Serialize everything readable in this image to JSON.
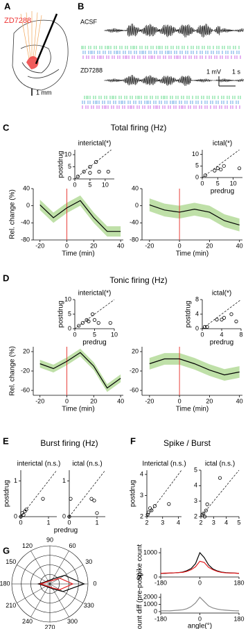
{
  "figure": {
    "A": {
      "panel": "A",
      "drug": "ZD7288",
      "scale": "1 mm"
    },
    "B": {
      "panel": "B",
      "trace1": "ACSF",
      "trace2": "ZD7288",
      "scale_v": "1 mV",
      "scale_t": "1 s"
    }
  },
  "chart_data": [
    {
      "type": "line",
      "panel": "C",
      "group_title": "Total firing (Hz)",
      "ylabel": "Rel. change (%)",
      "xlabel": "Time (min)",
      "x": [
        -20,
        -10,
        0,
        10,
        20,
        30,
        40
      ],
      "values": [
        2,
        -28,
        -5,
        12,
        -28,
        -60,
        -60
      ],
      "band_upper": [
        14,
        -16,
        7,
        24,
        -16,
        -48,
        -48
      ],
      "band_lower": [
        -10,
        -40,
        -17,
        0,
        -40,
        -72,
        -72
      ],
      "color": "#000000",
      "band_color": "#bfe0a8",
      "vline": 0,
      "vline_color": "#e8403a",
      "xlim": [
        -25,
        42
      ],
      "ylim": [
        -80,
        40
      ],
      "xticks": [
        -20,
        0,
        20,
        40
      ],
      "yticks": [
        -80,
        -40,
        0,
        40
      ]
    },
    {
      "type": "scatter",
      "title": "interictal(*)",
      "ylabel": "postdrug",
      "x": [
        1,
        3,
        5,
        5,
        7,
        8,
        11
      ],
      "values": [
        1,
        3,
        5,
        2.5,
        7,
        3,
        3
      ],
      "xlim": [
        0,
        13
      ],
      "ylim": [
        0,
        12
      ],
      "xticks": [
        0,
        5,
        10
      ],
      "yticks": [
        0,
        5,
        10
      ],
      "diagonal": true
    },
    {
      "type": "line",
      "xlabel": "Time (min)",
      "x": [
        -20,
        -10,
        0,
        10,
        20,
        30,
        40
      ],
      "values": [
        2,
        -10,
        -15,
        -8,
        -15,
        -35,
        -45
      ],
      "band_upper": [
        17,
        5,
        0,
        7,
        0,
        -20,
        -30
      ],
      "band_lower": [
        -13,
        -25,
        -30,
        -23,
        -30,
        -50,
        -60
      ],
      "color": "#000000",
      "band_color": "#bfe0a8",
      "vline": 0,
      "vline_color": "#e8403a",
      "xlim": [
        -25,
        42
      ],
      "ylim": [
        -80,
        40
      ],
      "xticks": [
        -20,
        0,
        20,
        40
      ],
      "yticks": [
        -80,
        -40,
        0,
        40
      ]
    },
    {
      "type": "scatter",
      "title": "ictal(*)",
      "xlabel": "predrug",
      "x": [
        1,
        4,
        5,
        6,
        7,
        12
      ],
      "values": [
        1,
        3,
        4,
        3.5,
        5,
        4
      ],
      "xlim": [
        0,
        13
      ],
      "ylim": [
        0,
        12
      ],
      "xticks": [
        0,
        5,
        10
      ],
      "yticks": [
        0,
        5,
        10
      ],
      "diagonal": true
    },
    {
      "type": "line",
      "panel": "D",
      "group_title": "Tonic firing (Hz)",
      "ylabel": "Rel. change (%)",
      "xlabel": "Time (min)",
      "x": [
        -20,
        -10,
        0,
        10,
        20,
        30,
        40
      ],
      "values": [
        -5,
        -15,
        0,
        18,
        -10,
        -55,
        -35
      ],
      "band_upper": [
        3,
        -7,
        8,
        26,
        -2,
        -47,
        -27
      ],
      "band_lower": [
        -13,
        -23,
        -8,
        10,
        -18,
        -63,
        -43
      ],
      "color": "#000000",
      "band_color": "#bfe0a8",
      "vline": 0,
      "vline_color": "#e8403a",
      "xlim": [
        -25,
        42
      ],
      "ylim": [
        -70,
        30
      ],
      "xticks": [
        -20,
        0,
        20,
        40
      ],
      "yticks": [
        -60,
        -20,
        20
      ]
    },
    {
      "type": "scatter",
      "title": "interictal(*)",
      "ylabel": "postdrug",
      "xlabel": "predrug",
      "x": [
        1,
        2,
        3,
        3.5,
        4.5,
        5,
        6,
        9
      ],
      "values": [
        1,
        2,
        3,
        2.5,
        5,
        3,
        2,
        2
      ],
      "xlim": [
        0,
        10
      ],
      "ylim": [
        0,
        10
      ],
      "xticks": [
        0,
        5,
        10
      ],
      "yticks": [
        0,
        5,
        10
      ],
      "diagonal": true
    },
    {
      "type": "line",
      "xlabel": "Time (min)",
      "x": [
        -20,
        -10,
        0,
        10,
        20,
        30,
        40
      ],
      "values": [
        -5,
        5,
        5,
        -5,
        -18,
        -28,
        -22
      ],
      "band_upper": [
        7,
        17,
        17,
        7,
        -6,
        -16,
        -10
      ],
      "band_lower": [
        -17,
        -7,
        -7,
        -17,
        -30,
        -40,
        -34
      ],
      "color": "#000000",
      "band_color": "#bfe0a8",
      "vline": 0,
      "vline_color": "#e8403a",
      "xlim": [
        -25,
        42
      ],
      "ylim": [
        -70,
        30
      ],
      "xticks": [
        -20,
        0,
        20,
        40
      ],
      "yticks": [
        -60,
        -20,
        20
      ]
    },
    {
      "type": "scatter",
      "title": "ictal(*)",
      "ylabel": "postdrug",
      "xlabel": "predrug",
      "x": [
        0.5,
        1,
        3,
        4,
        4.5,
        6,
        7
      ],
      "values": [
        0.5,
        0.5,
        2.5,
        2.5,
        3,
        4,
        2
      ],
      "xlim": [
        0,
        8
      ],
      "ylim": [
        0,
        8
      ],
      "xticks": [
        0,
        4,
        8
      ],
      "yticks": [
        0,
        4,
        8
      ],
      "diagonal": true
    },
    {
      "type": "scatter",
      "panel": "E",
      "group_title": "Burst firing (Hz)",
      "title": "interictal (n.s.)",
      "ylabel": "postdrug",
      "xlabel": "predrug",
      "x": [
        0,
        0.05,
        0.1,
        0.15,
        0.2,
        0.8
      ],
      "values": [
        0,
        0.1,
        0.05,
        0.15,
        0.2,
        0.5
      ],
      "xlim": [
        0,
        1.3
      ],
      "ylim": [
        0,
        1.3
      ],
      "xticks": [
        0,
        1
      ],
      "yticks": [
        0,
        1
      ],
      "diagonal": true
    },
    {
      "type": "scatter",
      "title": "ictal (n.s.)",
      "x": [
        0,
        0.05,
        0.8,
        1,
        0.9
      ],
      "values": [
        0,
        0.5,
        0.5,
        0.1,
        0.45
      ],
      "xlim": [
        0,
        1.3
      ],
      "ylim": [
        0,
        1.3
      ],
      "xticks": [
        0,
        1
      ],
      "yticks": [
        0,
        1
      ],
      "diagonal": true
    },
    {
      "type": "scatter",
      "panel": "F",
      "group_title": "Spike / Burst",
      "title": "Interictal (n.s.)",
      "ylabel": "postdrug",
      "x": [
        2.05,
        2.1,
        2.2,
        2.3,
        2.5,
        3.4
      ],
      "values": [
        2.1,
        2.2,
        2.4,
        2.3,
        2.5,
        2.6
      ],
      "xlim": [
        2,
        4.2
      ],
      "ylim": [
        2,
        4.2
      ],
      "xticks": [
        2,
        3,
        4
      ],
      "yticks": [
        2,
        3,
        4
      ],
      "diagonal": true
    },
    {
      "type": "scatter",
      "title": "ictal (n.s.)",
      "x": [
        2.1,
        2.2,
        2.3,
        2.4,
        2.5,
        3.5
      ],
      "values": [
        2.1,
        2.2,
        2.0,
        2.4,
        2.8,
        4.5
      ],
      "xlim": [
        2,
        5
      ],
      "ylim": [
        2,
        5
      ],
      "xticks": [
        2,
        3,
        4,
        5
      ],
      "yticks": [
        2,
        3,
        4,
        5
      ],
      "diagonal": true
    },
    {
      "type": "polar",
      "panel": "G",
      "theta": [
        0,
        30,
        60,
        90,
        120,
        150,
        180,
        210,
        240,
        270,
        300,
        330
      ],
      "rlim": [
        0,
        1
      ],
      "rticks": [
        0.25,
        0.5,
        0.75,
        1
      ],
      "angle_ticks": [
        0,
        30,
        60,
        90,
        120,
        150,
        180,
        210,
        240,
        270,
        300,
        330
      ],
      "series": [
        {
          "color": "#000000",
          "values": [
            0.9,
            0.45,
            0.15,
            0.1,
            0.1,
            0.12,
            0.3,
            0.12,
            0.1,
            0.1,
            0.15,
            0.4
          ]
        },
        {
          "color": "#e41a1c",
          "values": [
            0.6,
            0.3,
            0.1,
            0.08,
            0.08,
            0.1,
            0.25,
            0.1,
            0.08,
            0.08,
            0.12,
            0.3
          ]
        }
      ]
    },
    {
      "type": "line",
      "ylabel": "Spike count",
      "x": [
        -180,
        -160,
        -140,
        -120,
        -100,
        -80,
        -60,
        -40,
        -20,
        0,
        20,
        40,
        60,
        80,
        100,
        120,
        140,
        160,
        180
      ],
      "series": [
        {
          "color": "#000000",
          "values": [
            150,
            150,
            160,
            170,
            180,
            200,
            260,
            350,
            550,
            1000,
            800,
            500,
            330,
            250,
            200,
            180,
            170,
            160,
            150
          ]
        },
        {
          "color": "#e41a1c",
          "values": [
            150,
            160,
            160,
            170,
            180,
            190,
            230,
            300,
            420,
            650,
            600,
            400,
            300,
            230,
            190,
            170,
            160,
            160,
            150
          ]
        }
      ],
      "xlim": [
        -180,
        180
      ],
      "ylim": [
        0,
        1200
      ],
      "xticks": [
        -180,
        0,
        180
      ],
      "yticks": [
        0,
        1000
      ]
    },
    {
      "type": "line",
      "ylabel": "Count diff (pre-post)",
      "xlabel": "angle(°)",
      "x": [
        -180,
        -160,
        -140,
        -120,
        -100,
        -80,
        -60,
        -40,
        -20,
        0,
        20,
        40,
        60,
        80,
        100,
        120,
        140,
        160,
        180
      ],
      "series": [
        {
          "color": "#888888",
          "values": [
            100,
            120,
            100,
            150,
            200,
            250,
            400,
            700,
            1200,
            2000,
            1400,
            800,
            500,
            350,
            250,
            200,
            150,
            120,
            100
          ]
        }
      ],
      "xlim": [
        -180,
        180
      ],
      "ylim": [
        -200,
        2500
      ],
      "xticks": [
        -180,
        0,
        180
      ],
      "yticks": [
        0,
        1000,
        2000
      ]
    }
  ]
}
